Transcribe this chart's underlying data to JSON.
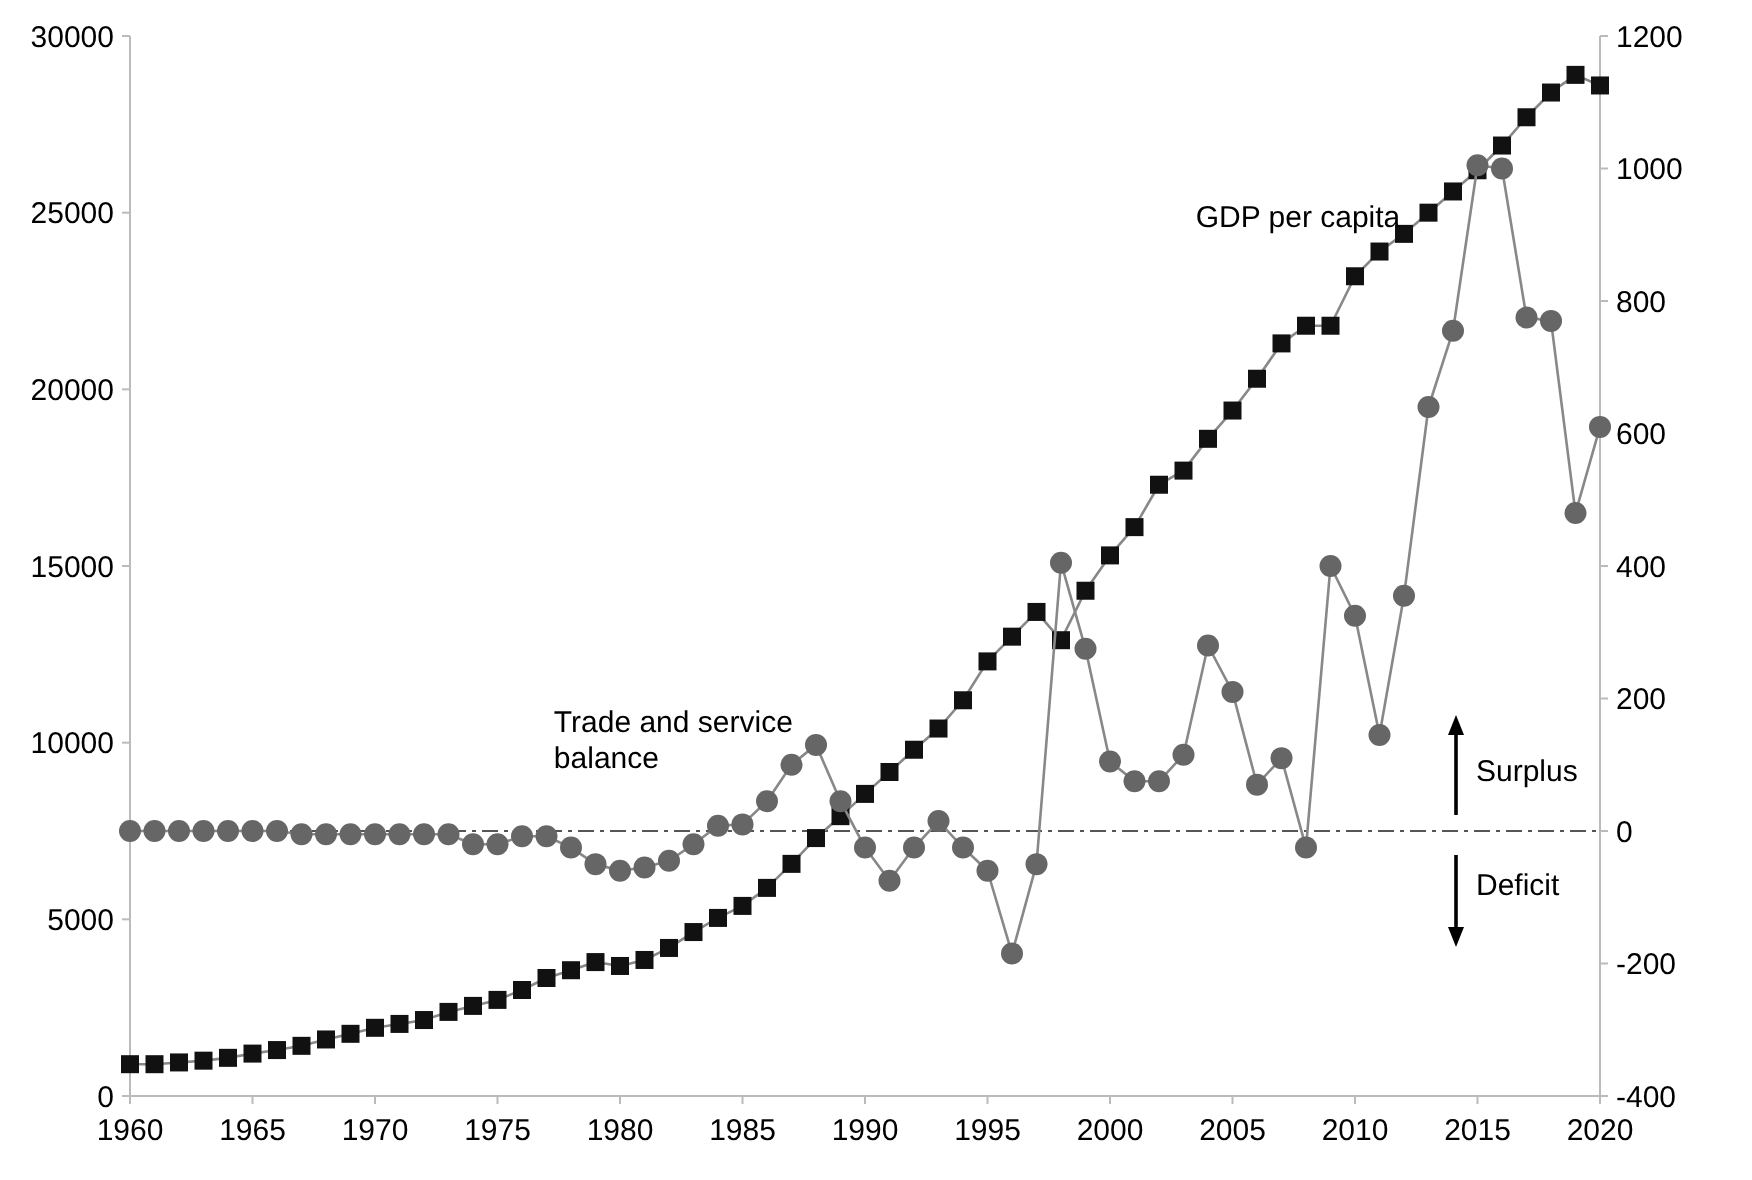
{
  "chart_data": {
    "type": "line",
    "x": [
      1960,
      1961,
      1962,
      1963,
      1964,
      1965,
      1966,
      1967,
      1968,
      1969,
      1970,
      1971,
      1972,
      1973,
      1974,
      1975,
      1976,
      1977,
      1978,
      1979,
      1980,
      1981,
      1982,
      1983,
      1984,
      1985,
      1986,
      1987,
      1988,
      1989,
      1990,
      1991,
      1992,
      1993,
      1994,
      1995,
      1996,
      1997,
      1998,
      1999,
      2000,
      2001,
      2002,
      2003,
      2004,
      2005,
      2006,
      2007,
      2008,
      2009,
      2010,
      2011,
      2012,
      2013,
      2014,
      2015,
      2016,
      2017,
      2018,
      2019,
      2020
    ],
    "series": [
      {
        "name": "GDP per capita",
        "color": "#111111",
        "marker": "square",
        "values": [
          900,
          900,
          950,
          1000,
          1080,
          1200,
          1300,
          1420,
          1600,
          1760,
          1930,
          2040,
          2150,
          2380,
          2550,
          2720,
          3000,
          3340,
          3560,
          3790,
          3680,
          3850,
          4190,
          4640,
          5040,
          5380,
          5890,
          6570,
          7300,
          7920,
          8550,
          9170,
          9800,
          10400,
          11200,
          12300,
          13000,
          13700,
          12900,
          14300,
          15300,
          16100,
          17300,
          17700,
          18600,
          19400,
          20300,
          21300,
          21800,
          21800,
          23200,
          23900,
          24400,
          25000,
          25600,
          26200,
          26900,
          27700,
          28400,
          28900,
          28600
        ]
      },
      {
        "name": "Trade and service balance",
        "color": "#666666",
        "marker": "circle",
        "axis": "y2",
        "values": [
          0,
          0,
          0,
          0,
          0,
          0,
          0,
          -5,
          -5,
          -5,
          -5,
          -5,
          -5,
          -5,
          -20,
          -20,
          -8,
          -8,
          -25,
          -50,
          -60,
          -55,
          -45,
          -20,
          8,
          10,
          45,
          100,
          130,
          45,
          -25,
          -75,
          -25,
          15,
          -25,
          -60,
          -185,
          -50,
          405,
          275,
          105,
          75,
          75,
          115,
          280,
          210,
          70,
          110,
          -25,
          400,
          325,
          145,
          355,
          640,
          755,
          1005,
          1000,
          775,
          770,
          480,
          610
        ]
      }
    ],
    "xlim": [
      1960,
      2020
    ],
    "xticks": [
      1960,
      1965,
      1970,
      1975,
      1980,
      1985,
      1990,
      1995,
      2000,
      2005,
      2010,
      2015,
      2020
    ],
    "ylim": [
      0,
      30000
    ],
    "yticks": [
      0,
      5000,
      10000,
      15000,
      20000,
      25000,
      30000
    ],
    "y2lim": [
      -400,
      1200
    ],
    "y2ticks": [
      -400,
      -200,
      0,
      200,
      400,
      600,
      800,
      1000,
      1200
    ],
    "ref_lines": [
      {
        "axis": "y2",
        "value": 0,
        "color": "#555555",
        "line_style": "dashdot"
      }
    ],
    "annotations": [
      "Surplus",
      "Deficit"
    ],
    "grid": false
  }
}
